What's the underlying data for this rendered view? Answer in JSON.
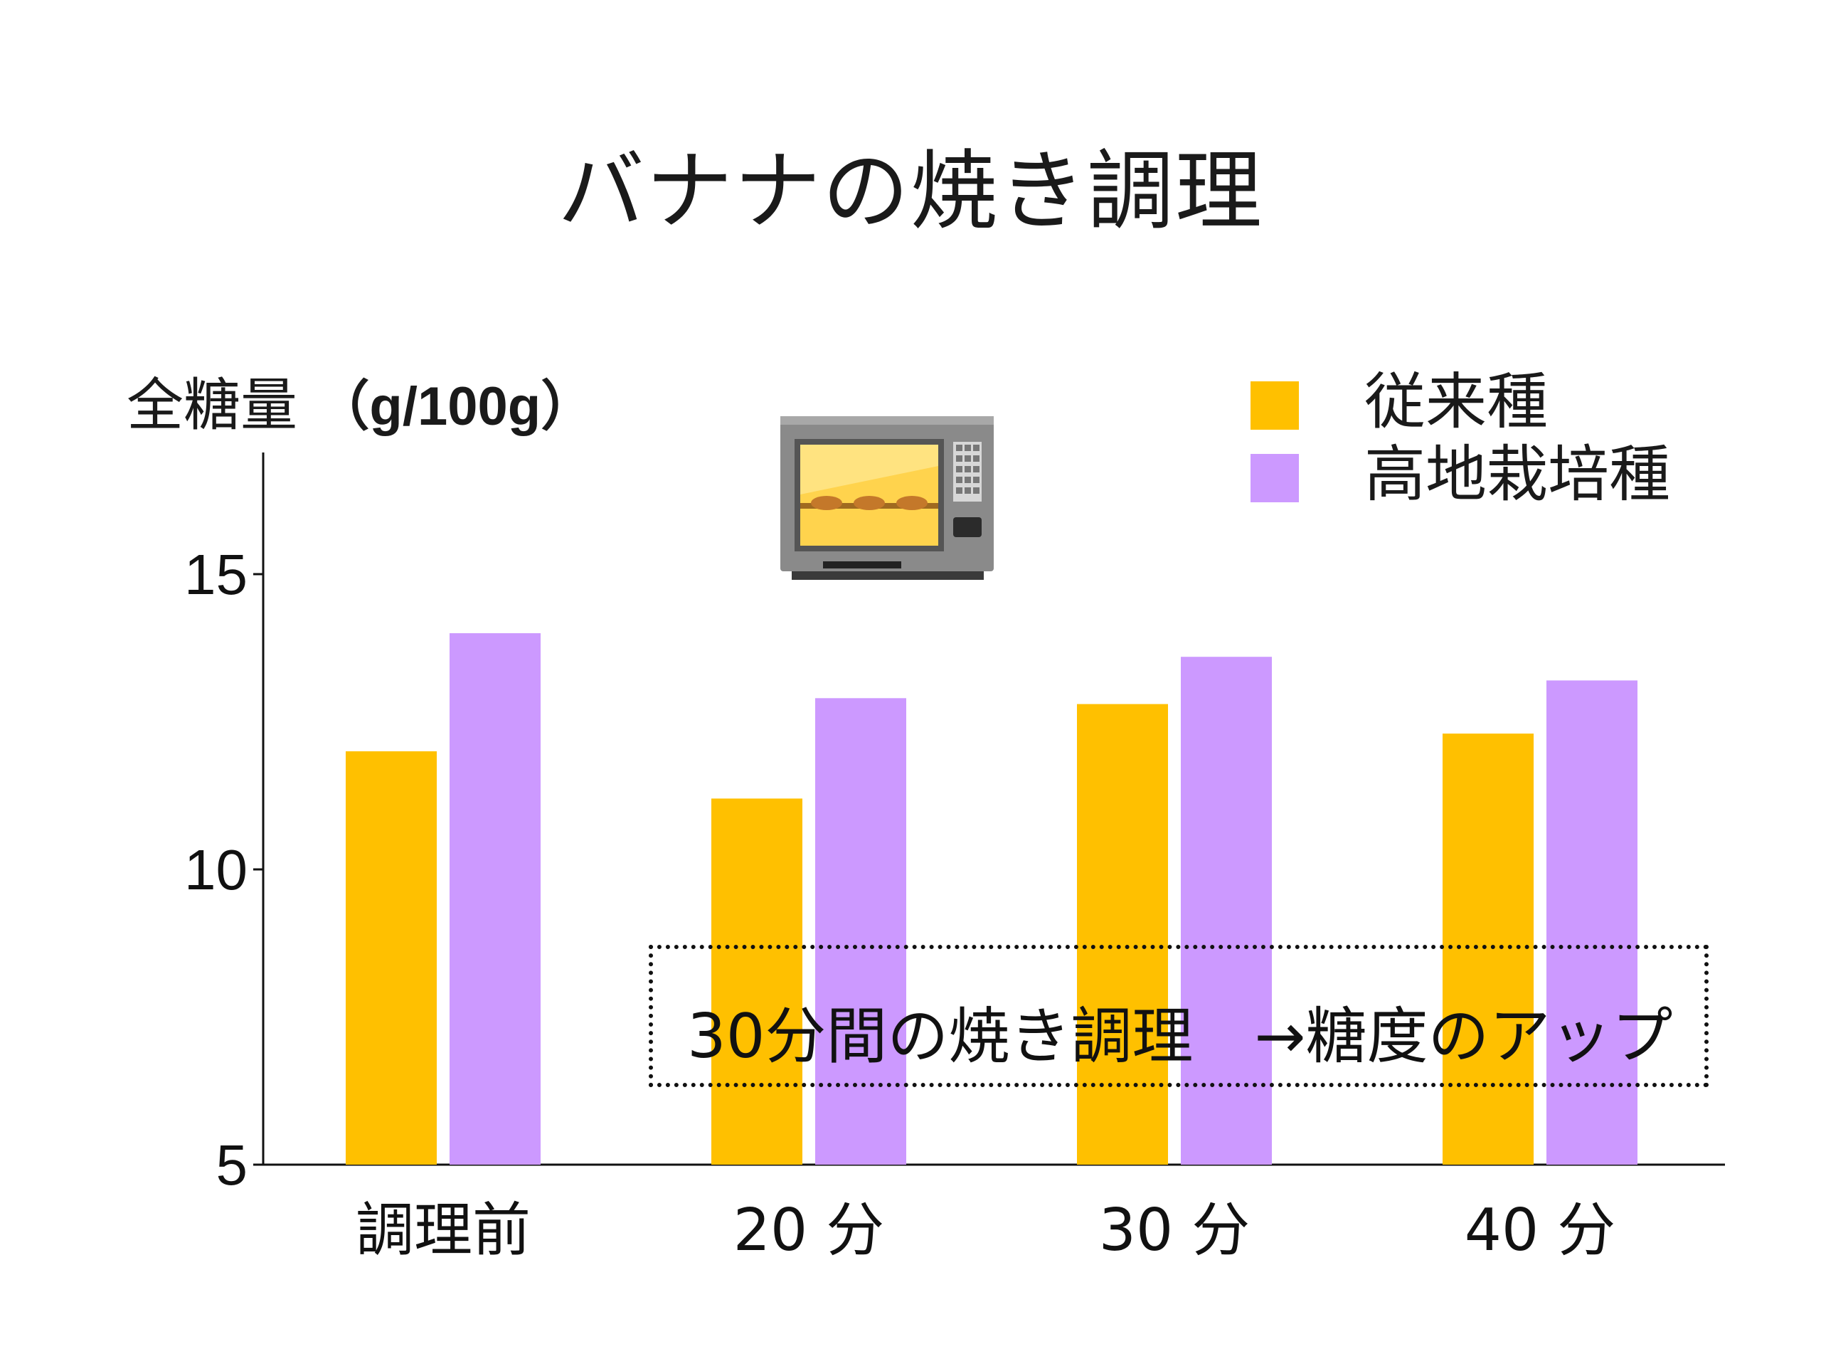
{
  "slide": {
    "title": "バナナの焼き調理",
    "icon": "oven-icon"
  },
  "chart_data": {
    "type": "bar",
    "title": "バナナの焼き調理",
    "ylabel_prefix": "全糖量",
    "ylabel_unit": "（g/100g）",
    "categories": [
      "調理前",
      "20 分",
      "30 分",
      "40 分"
    ],
    "series": [
      {
        "name": "従来種",
        "values": [
          12.0,
          11.2,
          12.8,
          12.3
        ],
        "color": "#FFC000"
      },
      {
        "name": "高地栽培種",
        "values": [
          14.0,
          12.9,
          13.6,
          13.2
        ],
        "color": "#CC99FF"
      }
    ],
    "ylim": [
      5,
      17
    ],
    "yticks": [
      5,
      10,
      15
    ],
    "grid": false,
    "legend_position": "top-right"
  },
  "annotation": {
    "text": "30分間の焼き調理　→糖度のアップ"
  }
}
